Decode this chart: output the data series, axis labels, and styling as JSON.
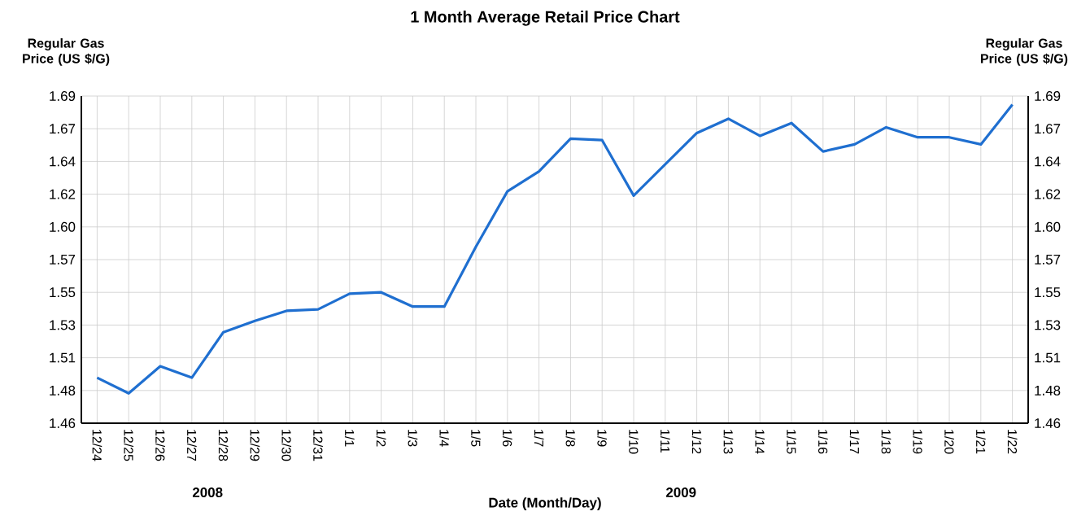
{
  "chart_data": {
    "type": "line",
    "title": "1 Month Average Retail Price Chart",
    "xlabel": "Date (Month/Day)",
    "ylabel": "Regular Gas Price (US $/G)",
    "y2label": "Regular Gas Price (US $/G)",
    "annotations": [
      "2008",
      "2009"
    ],
    "categories": [
      "12/24",
      "12/25",
      "12/26",
      "12/27",
      "12/28",
      "12/29",
      "12/30",
      "12/31",
      "1/1",
      "1/2",
      "1/3",
      "1/4",
      "1/5",
      "1/6",
      "1/7",
      "1/8",
      "1/9",
      "1/10",
      "1/11",
      "1/12",
      "1/13",
      "1/14",
      "1/15",
      "1/16",
      "1/17",
      "1/18",
      "1/19",
      "1/20",
      "1/21",
      "1/22"
    ],
    "series": [
      {
        "color": "#1f6fd0",
        "values": [
          1.492,
          1.481,
          1.5,
          1.492,
          1.524,
          1.532,
          1.539,
          1.54,
          1.551,
          1.552,
          1.542,
          1.542,
          1.584,
          1.623,
          1.637,
          1.66,
          1.659,
          1.62,
          1.642,
          1.664,
          1.674,
          1.662,
          1.671,
          1.651,
          1.656,
          1.668,
          1.661,
          1.661,
          1.656,
          1.684
        ]
      }
    ],
    "ylim": [
      1.46,
      1.69
    ],
    "yticks": [
      {
        "value": 1.46,
        "label": "1.46"
      },
      {
        "value": 1.483,
        "label": "1.48"
      },
      {
        "value": 1.506,
        "label": "1.51"
      },
      {
        "value": 1.529,
        "label": "1.53"
      },
      {
        "value": 1.552,
        "label": "1.55"
      },
      {
        "value": 1.575,
        "label": "1.57"
      },
      {
        "value": 1.598,
        "label": "1.60"
      },
      {
        "value": 1.621,
        "label": "1.62"
      },
      {
        "value": 1.644,
        "label": "1.64"
      },
      {
        "value": 1.667,
        "label": "1.67"
      },
      {
        "value": 1.69,
        "label": "1.69"
      }
    ],
    "y2lim": [
      1.46,
      1.69
    ],
    "y2ticks": [
      {
        "value": 1.46,
        "label": "1.46"
      },
      {
        "value": 1.483,
        "label": "1.48"
      },
      {
        "value": 1.506,
        "label": "1.51"
      },
      {
        "value": 1.529,
        "label": "1.53"
      },
      {
        "value": 1.552,
        "label": "1.55"
      },
      {
        "value": 1.575,
        "label": "1.57"
      },
      {
        "value": 1.598,
        "label": "1.60"
      },
      {
        "value": 1.621,
        "label": "1.62"
      },
      {
        "value": 1.644,
        "label": "1.64"
      },
      {
        "value": 1.667,
        "label": "1.67"
      },
      {
        "value": 1.69,
        "label": "1.69"
      }
    ],
    "grid": true,
    "marker": "none",
    "line_style": "solid"
  }
}
